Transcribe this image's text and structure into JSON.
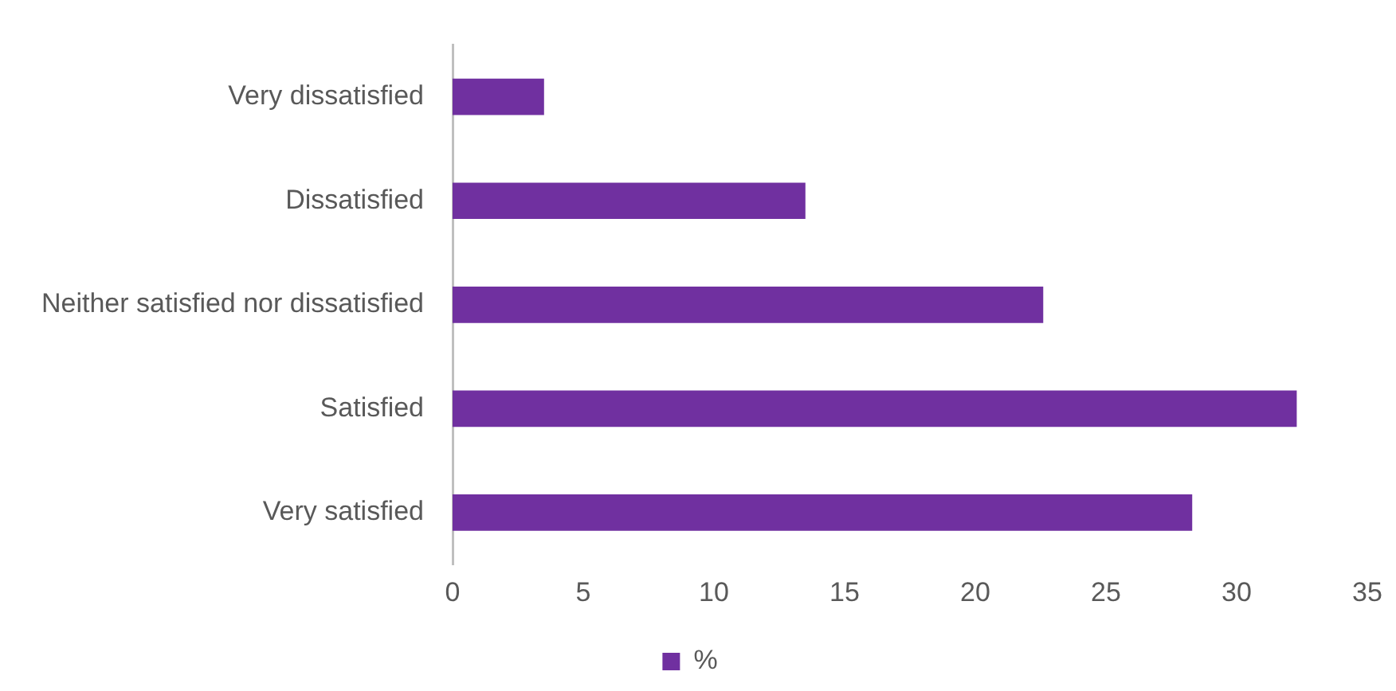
{
  "chart_data": {
    "type": "bar",
    "orientation": "horizontal",
    "categories": [
      "Very dissatisfied",
      "Dissatisfied",
      "Neither satisfied nor dissatisfied",
      "Satisfied",
      "Very satisfied"
    ],
    "series": [
      {
        "name": "%",
        "color": "#7030a0",
        "values": [
          3.5,
          13.5,
          22.6,
          32.3,
          28.3
        ]
      }
    ],
    "xlim": [
      0,
      35
    ],
    "xticks": [
      0,
      5,
      10,
      15,
      20,
      25,
      30,
      35
    ],
    "grid": false,
    "legend": "bottom"
  }
}
